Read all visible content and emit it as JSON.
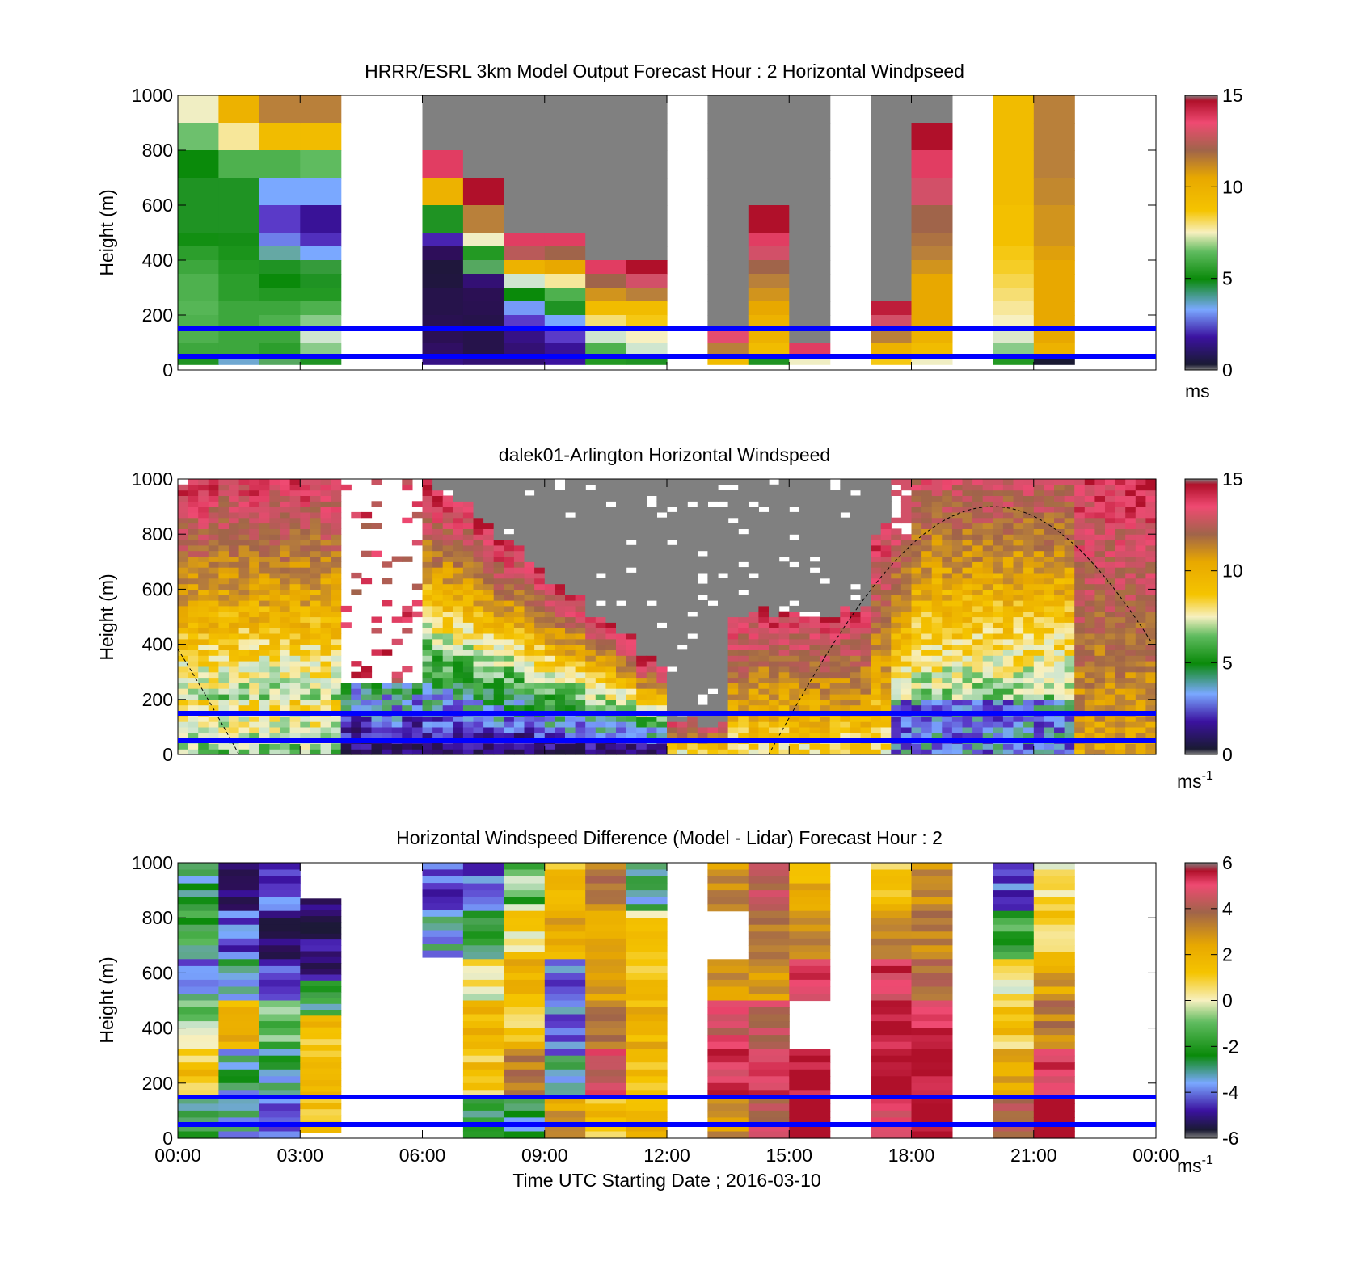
{
  "figure": {
    "xticks": [
      "00:00",
      "03:00",
      "06:00",
      "09:00",
      "12:00",
      "15:00",
      "18:00",
      "21:00",
      "00:00"
    ],
    "xlabel": "Time UTC  Starting Date ; 2016-03-10"
  },
  "colors": {
    "no_data": "#808080",
    "reference_lines": "#0000ff",
    "colormap": [
      "#1a1a33",
      "#2e0e5a",
      "#3b12a0",
      "#5a3ac8",
      "#7aa8ff",
      "#55a860",
      "#0a8a0a",
      "#5fbb5f",
      "#cfe6cf",
      "#f7f0c0",
      "#f5c400",
      "#e8a800",
      "#b9803a",
      "#a0644a",
      "#d25068",
      "#ef4a72",
      "#b0102a"
    ]
  },
  "chart_data": [
    {
      "type": "heatmap",
      "title": "HRRR/ESRL 3km Model Output   Forecast Hour : 2 Horizontal Windpseed",
      "xlabel": "",
      "ylabel": "Height (m)",
      "xlim": [
        "00:00",
        "00:00"
      ],
      "ylim": [
        0,
        1000
      ],
      "yticks": [
        "0",
        "200",
        "400",
        "600",
        "800",
        "1000"
      ],
      "colorbar": {
        "min": 0,
        "max": 15,
        "ticks": [
          "0",
          "5",
          "10",
          "15"
        ],
        "unit": "ms",
        "superscript": ""
      },
      "reference_lines_m": [
        50,
        150
      ],
      "columns_hours": [
        0,
        1,
        2,
        3,
        6,
        7,
        8,
        9,
        10,
        11,
        13,
        14,
        15,
        17,
        18,
        20,
        21
      ],
      "values_note": "approximate speeds (m/s) read from colors; rows from ~1000 m down to ~0 m"
    },
    {
      "type": "heatmap",
      "title": "dalek01-Arlington  Horizontal Windspeed",
      "xlabel": "",
      "ylabel": "Height (m)",
      "xlim": [
        "00:00",
        "00:00"
      ],
      "ylim": [
        0,
        1000
      ],
      "yticks": [
        "0",
        "200",
        "400",
        "600",
        "800",
        "1000"
      ],
      "colorbar": {
        "min": 0,
        "max": 15,
        "ticks": [
          "0",
          "5",
          "10",
          "15"
        ],
        "unit": "ms",
        "superscript": "-1"
      },
      "reference_lines_m": [
        50,
        150
      ],
      "overlay": "dashed boundary-layer height curve, peak ~900 m near 20:00"
    },
    {
      "type": "heatmap",
      "title": "Horizontal Windspeed Difference (Model - Lidar) Forecast Hour : 2",
      "xlabel": "Time UTC  Starting Date ; 2016-03-10",
      "ylabel": "Height (m)",
      "xlim": [
        "00:00",
        "00:00"
      ],
      "ylim": [
        0,
        1000
      ],
      "yticks": [
        "0",
        "200",
        "400",
        "600",
        "800",
        "1000"
      ],
      "colorbar": {
        "min": -6,
        "max": 6,
        "ticks": [
          "-6",
          "-4",
          "-2",
          "0",
          "2",
          "4",
          "6"
        ],
        "unit": "ms",
        "superscript": "-1"
      },
      "reference_lines_m": [
        50,
        150
      ]
    }
  ]
}
